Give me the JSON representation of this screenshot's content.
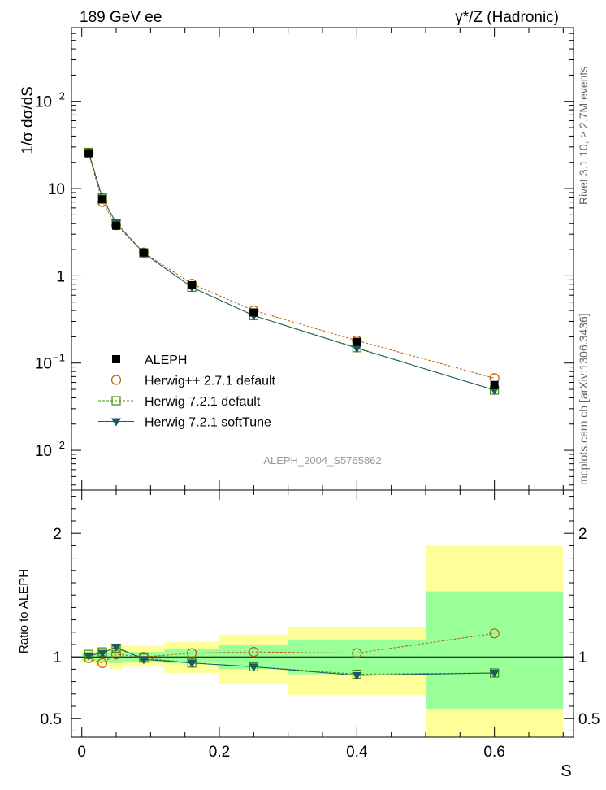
{
  "header": {
    "left_title": "189 GeV ee",
    "right_title": "γ*/Z (Hadronic)"
  },
  "side_labels": {
    "rivet": "Rivet 3.1.10, ≥ 2.7M events",
    "mcplots": "mcplots.cern.ch [arXiv:1306.3436]"
  },
  "watermark": "ALEPH_2004_S5765862",
  "chart_data": [
    {
      "type": "scatter",
      "panel": "main",
      "title": "",
      "xlabel": "S",
      "ylabel": "1/σ dσ/dS",
      "yscale": "log",
      "xlim": [
        -0.015,
        0.715
      ],
      "ylim": [
        0.0035,
        700
      ],
      "y_ticks": [
        {
          "value": 0.01,
          "label": "10",
          "exp": "−2"
        },
        {
          "value": 0.1,
          "label": "10",
          "exp": "−1"
        },
        {
          "value": 1,
          "label": "1",
          "exp": ""
        },
        {
          "value": 10,
          "label": "10",
          "exp": ""
        },
        {
          "value": 100,
          "label": "10",
          "exp": "2"
        }
      ],
      "legend_position": "bottom-left",
      "series": [
        {
          "name": "ALEPH",
          "marker": "filled-square",
          "color": "#000000",
          "x": [
            0.01,
            0.03,
            0.05,
            0.09,
            0.16,
            0.25,
            0.4,
            0.6
          ],
          "y": [
            25.5,
            7.5,
            3.75,
            1.85,
            0.78,
            0.38,
            0.175,
            0.056
          ]
        },
        {
          "name": "Herwig++ 2.7.1 default",
          "marker": "open-circle",
          "line": "dashed",
          "color": "#b85c00",
          "x": [
            0.01,
            0.03,
            0.05,
            0.09,
            0.16,
            0.25,
            0.4,
            0.6
          ],
          "y": [
            25.2,
            7.0,
            3.8,
            1.85,
            0.81,
            0.4,
            0.181,
            0.067
          ]
        },
        {
          "name": "Herwig 7.2.1 default",
          "marker": "open-square",
          "line": "dashed",
          "color": "#3d8c00",
          "x": [
            0.01,
            0.03,
            0.05,
            0.09,
            0.16,
            0.25,
            0.4,
            0.6
          ],
          "y": [
            26.0,
            7.8,
            4.0,
            1.83,
            0.74,
            0.35,
            0.15,
            0.049
          ]
        },
        {
          "name": "Herwig 7.2.1 softTune",
          "marker": "filled-triangle-down",
          "line": "solid",
          "color": "#1c5a66",
          "x": [
            0.01,
            0.03,
            0.05,
            0.09,
            0.16,
            0.25,
            0.4,
            0.6
          ],
          "y": [
            26.0,
            7.8,
            4.05,
            1.82,
            0.74,
            0.35,
            0.148,
            0.049
          ]
        }
      ]
    },
    {
      "type": "scatter",
      "panel": "ratio",
      "xlabel": "S",
      "ylabel": "Ratio to ALEPH",
      "xlim": [
        -0.015,
        0.715
      ],
      "ylim": [
        0.35,
        2.35
      ],
      "x_ticks": [
        0,
        0.2,
        0.4,
        0.6
      ],
      "x_tick_labels": [
        "0",
        "0.2",
        "0.4",
        "0.6"
      ],
      "y_ticks": [
        0.5,
        1,
        2
      ],
      "y_tick_labels": [
        "0.5",
        "1",
        "2"
      ],
      "bands": {
        "edges": [
          0.0,
          0.02,
          0.04,
          0.06,
          0.12,
          0.2,
          0.3,
          0.5,
          0.7
        ],
        "green_lo": [
          0.97,
          0.96,
          0.95,
          0.96,
          0.95,
          0.9,
          0.86,
          0.58
        ],
        "green_hi": [
          1.03,
          1.04,
          1.05,
          1.04,
          1.06,
          1.1,
          1.14,
          1.53
        ],
        "yellow_lo": [
          0.95,
          0.93,
          0.9,
          0.92,
          0.87,
          0.78,
          0.69,
          0.35
        ],
        "yellow_hi": [
          1.05,
          1.07,
          1.11,
          1.09,
          1.12,
          1.18,
          1.24,
          1.9
        ]
      },
      "series": [
        {
          "name": "Herwig++ 2.7.1 default",
          "color": "#b85c00",
          "x": [
            0.01,
            0.03,
            0.05,
            0.09,
            0.16,
            0.25,
            0.4,
            0.6
          ],
          "y": [
            0.99,
            0.95,
            1.02,
            1.0,
            1.03,
            1.04,
            1.03,
            1.19
          ]
        },
        {
          "name": "Herwig 7.2.1 default",
          "color": "#3d8c00",
          "x": [
            0.01,
            0.03,
            0.05,
            0.09,
            0.16,
            0.25,
            0.4,
            0.6
          ],
          "y": [
            1.02,
            1.04,
            1.07,
            0.99,
            0.95,
            0.92,
            0.86,
            0.87
          ]
        },
        {
          "name": "Herwig 7.2.1 softTune",
          "color": "#1c5a66",
          "x": [
            0.01,
            0.03,
            0.05,
            0.09,
            0.16,
            0.25,
            0.4,
            0.6
          ],
          "y": [
            1.01,
            1.03,
            1.08,
            0.98,
            0.95,
            0.92,
            0.85,
            0.87
          ]
        }
      ]
    }
  ]
}
